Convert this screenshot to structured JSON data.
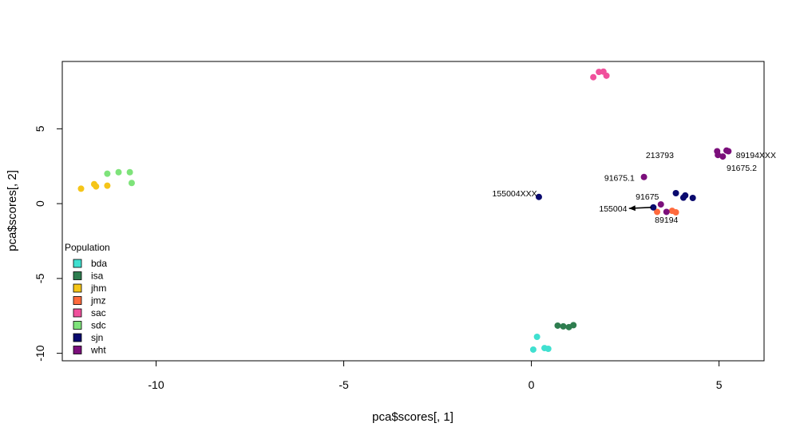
{
  "chart_data": {
    "type": "scatter",
    "xlabel": "pca$scores[, 1]",
    "ylabel": "pca$scores[, 2]",
    "xlim": [
      -12.5,
      6.2
    ],
    "ylim": [
      -10.5,
      9.5
    ],
    "xticks": [
      "-10",
      "-5",
      "0",
      "5"
    ],
    "yticks": [
      "-10",
      "-5",
      "0",
      "5"
    ],
    "grid": false,
    "legend": {
      "title": "Population",
      "placement": "bottom-left",
      "entries": [
        "bda",
        "isa",
        "jhm",
        "jmz",
        "sac",
        "sdc",
        "sjn",
        "wht"
      ]
    },
    "series": [
      {
        "name": "bda",
        "color": "#40E0D0",
        "points": [
          [
            0.15,
            -8.9
          ],
          [
            0.05,
            -9.75
          ],
          [
            0.35,
            -9.65
          ],
          [
            0.45,
            -9.7
          ]
        ]
      },
      {
        "name": "isa",
        "color": "#2E7D4F",
        "points": [
          [
            0.7,
            -8.15
          ],
          [
            0.85,
            -8.2
          ],
          [
            1.0,
            -8.25
          ],
          [
            1.12,
            -8.12
          ]
        ]
      },
      {
        "name": "jhm",
        "color": "#F5C518",
        "points": [
          [
            -12.0,
            1.0
          ],
          [
            -11.65,
            1.3
          ],
          [
            -11.6,
            1.15
          ],
          [
            -11.3,
            1.2
          ]
        ]
      },
      {
        "name": "jmz",
        "color": "#FF6A3D",
        "points": [
          [
            3.35,
            -0.55
          ],
          [
            3.75,
            -0.48
          ],
          [
            3.85,
            -0.58
          ]
        ]
      },
      {
        "name": "sac",
        "color": "#F0509C",
        "points": [
          [
            1.65,
            8.45
          ],
          [
            1.8,
            8.8
          ],
          [
            1.92,
            8.82
          ],
          [
            2.0,
            8.55
          ]
        ]
      },
      {
        "name": "sdc",
        "color": "#7EE37A",
        "points": [
          [
            -11.3,
            2.0
          ],
          [
            -11.0,
            2.1
          ],
          [
            -10.7,
            2.1
          ],
          [
            -10.65,
            1.38
          ]
        ]
      },
      {
        "name": "sjn",
        "color": "#0A0A6E",
        "points": [
          [
            0.2,
            0.45
          ],
          [
            3.25,
            -0.25
          ],
          [
            3.85,
            0.7
          ],
          [
            4.05,
            0.4
          ],
          [
            4.1,
            0.55
          ],
          [
            4.3,
            0.38
          ]
        ]
      },
      {
        "name": "wht",
        "color": "#7B0F7B",
        "points": [
          [
            4.95,
            3.5
          ],
          [
            4.97,
            3.25
          ],
          [
            5.1,
            3.15
          ],
          [
            5.2,
            3.55
          ],
          [
            5.25,
            3.5
          ],
          [
            3.0,
            1.78
          ],
          [
            3.45,
            -0.05
          ],
          [
            3.6,
            -0.55
          ]
        ]
      }
    ],
    "annotations": [
      {
        "text": "213793",
        "x": 3.05,
        "y": 3.25,
        "anchor": "start"
      },
      {
        "text": "89194XXX",
        "x": 5.45,
        "y": 3.25,
        "anchor": "start"
      },
      {
        "text": "91675.2",
        "x": 5.2,
        "y": 2.4,
        "anchor": "start"
      },
      {
        "text": "91675.1",
        "x": 2.75,
        "y": 1.75,
        "anchor": "end"
      },
      {
        "text": "155004XXX",
        "x": 0.15,
        "y": 0.7,
        "anchor": "end"
      },
      {
        "text": "91675",
        "x": 3.4,
        "y": 0.5,
        "anchor": "end"
      },
      {
        "text": "155004",
        "x": 2.55,
        "y": -0.3,
        "anchor": "end"
      },
      {
        "text": "89194",
        "x": 3.6,
        "y": -1.05,
        "anchor": "middle"
      }
    ],
    "arrow": {
      "from": [
        3.2,
        -0.25
      ],
      "to": [
        2.6,
        -0.32
      ]
    }
  }
}
